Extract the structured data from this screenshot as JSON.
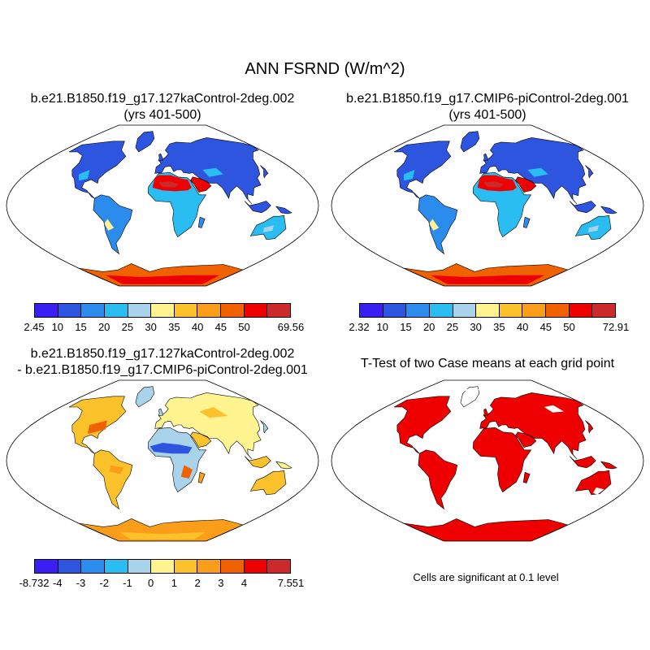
{
  "title": "ANN FSRND (W/m^2)",
  "panels": {
    "top_left": {
      "title_line1": "b.e21.B1850.f19_g17.127kaControl-2deg.002",
      "title_line2": "(yrs 401-500)"
    },
    "top_right": {
      "title_line1": "b.e21.B1850.f19_g17.CMIP6-piControl-2deg.001",
      "title_line2": "(yrs 401-500)"
    },
    "bottom_left": {
      "title_line1": "b.e21.B1850.f19_g17.127kaControl-2deg.002",
      "title_line2": "- b.e21.B1850.f19_g17.CMIP6-piControl-2deg.001"
    },
    "bottom_right": {
      "title_line1": "T-Test of two Case means at each grid point",
      "note": "Cells are significant at 0.1 level"
    }
  },
  "colorbars": {
    "top_left": [
      "2.45",
      "10",
      "15",
      "20",
      "25",
      "30",
      "35",
      "40",
      "45",
      "50",
      "69.56"
    ],
    "top_right": [
      "2.32",
      "10",
      "15",
      "20",
      "25",
      "30",
      "35",
      "40",
      "45",
      "50",
      "72.91"
    ],
    "bottom_left": [
      "-8.732",
      "-4",
      "-3",
      "-2",
      "-1",
      "0",
      "1",
      "2",
      "3",
      "4",
      "7.551"
    ]
  },
  "palette": [
    "#3a1ff5",
    "#2e55e0",
    "#2b8cee",
    "#29bdf2",
    "#a9d3ea",
    "#fff490",
    "#fcc22b",
    "#fa9d18",
    "#f06200",
    "#ee0000",
    "#cc2a2a"
  ],
  "significance_color": "#ee0000"
}
